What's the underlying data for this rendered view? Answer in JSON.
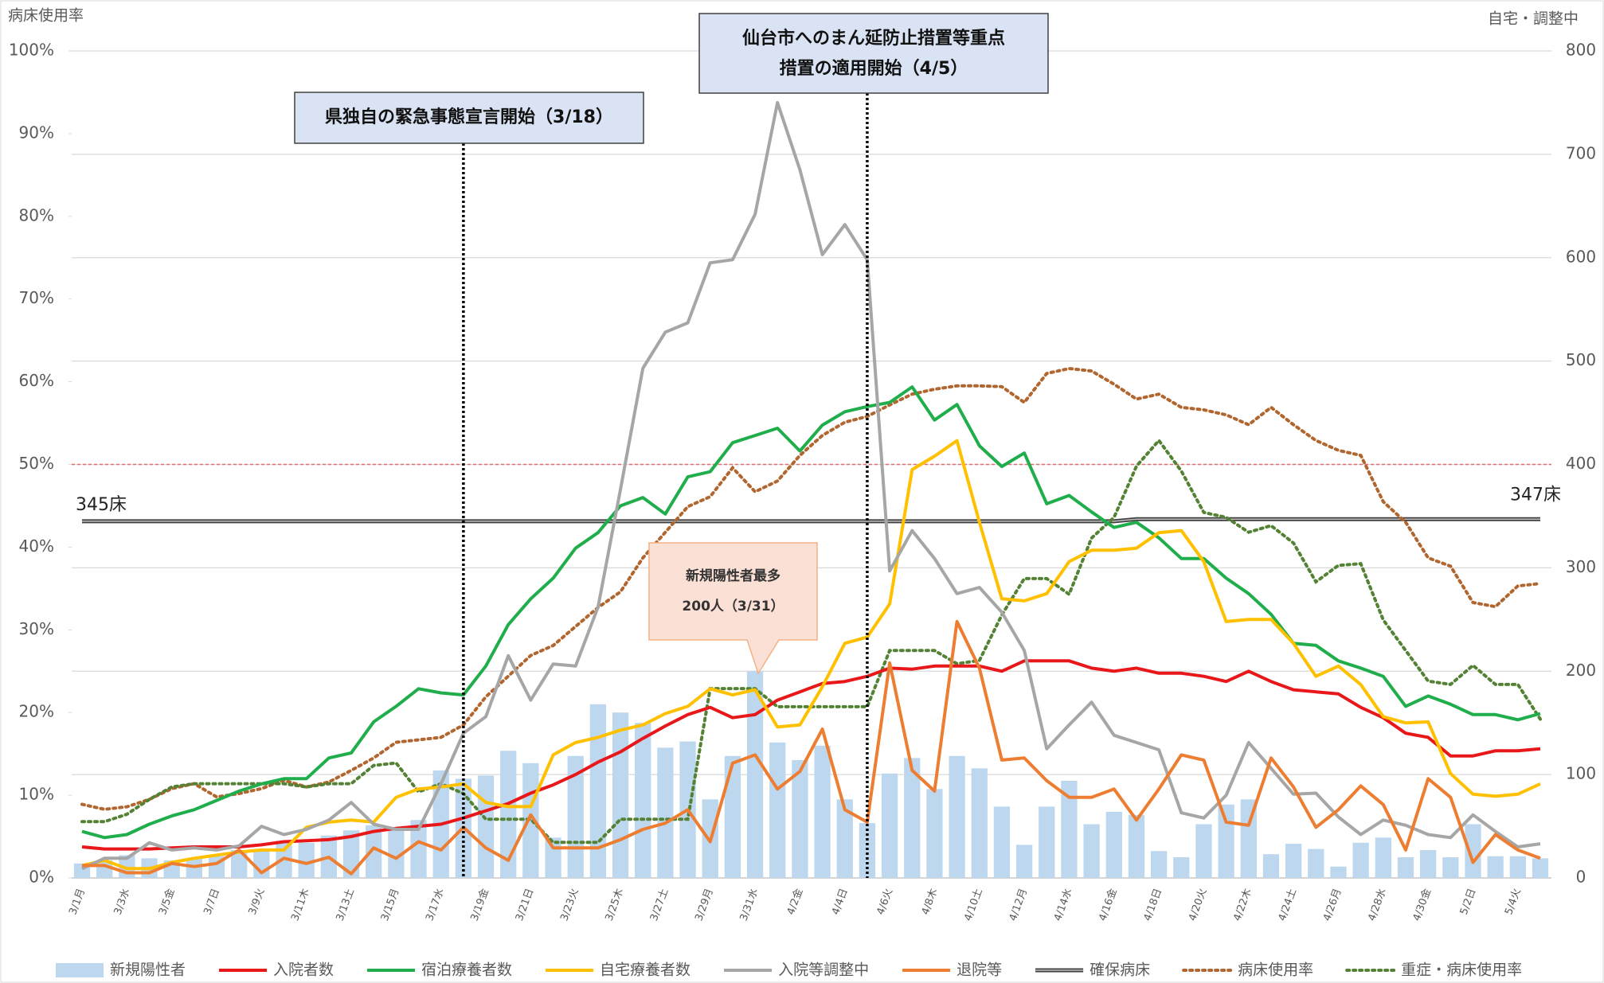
{
  "chart_data": {
    "type": "combo",
    "left_axis_label": "病床使用率",
    "right_axis_label": "自宅・調整中",
    "categories": [
      "3/1月",
      null,
      "3/3水",
      null,
      "3/5金",
      null,
      "3/7日",
      null,
      "3/9火",
      null,
      "3/11木",
      null,
      "3/13土",
      null,
      "3/15月",
      null,
      "3/17水",
      null,
      "3/19金",
      null,
      "3/21日",
      null,
      "3/23火",
      null,
      "3/25木",
      null,
      "3/27土",
      null,
      "3/29月",
      null,
      "3/31水",
      null,
      "4/2金",
      null,
      "4/4日",
      null,
      "4/6火",
      null,
      "4/8木",
      null,
      "4/10土",
      null,
      "4/12月",
      null,
      "4/14水",
      null,
      "4/16金",
      null,
      "4/18日",
      null,
      "4/20火",
      null,
      "4/22木",
      null,
      "4/24土",
      null,
      "4/26月",
      null,
      "4/28水",
      null,
      "4/30金",
      null,
      "5/2日",
      null,
      "5/4火",
      null
    ],
    "ylim": [
      0,
      100
    ],
    "yticks": [
      {
        "value": 0,
        "label": "0%"
      },
      {
        "value": 10,
        "label": "10%"
      },
      {
        "value": 20,
        "label": "20%"
      },
      {
        "value": 30,
        "label": "30%"
      },
      {
        "value": 40,
        "label": "40%"
      },
      {
        "value": 50,
        "label": "50%"
      },
      {
        "value": 60,
        "label": "60%"
      },
      {
        "value": 70,
        "label": "70%"
      },
      {
        "value": 80,
        "label": "80%"
      },
      {
        "value": 90,
        "label": "90%"
      },
      {
        "value": 100,
        "label": "100%"
      }
    ],
    "y2lim": [
      0,
      800
    ],
    "y2ticks": [
      0,
      100,
      200,
      300,
      400,
      500,
      600,
      700,
      800
    ],
    "grid": "y2",
    "reference_lines": [
      {
        "value": 50,
        "color": "#e46c6c"
      }
    ],
    "series": [
      {
        "name": "新規陽性者",
        "style": "bar",
        "axis": "y2",
        "color": "#bdd7ee",
        "values": [
          14,
          17,
          22,
          19,
          17,
          19,
          21,
          27,
          27,
          36,
          34,
          41,
          46,
          51,
          46,
          56,
          104,
          96,
          99,
          123,
          111,
          39,
          118,
          168,
          160,
          150,
          126,
          132,
          76,
          118,
          200,
          131,
          114,
          128,
          76,
          53,
          101,
          116,
          86,
          118,
          106,
          69,
          32,
          69,
          94,
          52,
          64,
          61,
          26,
          20,
          52,
          71,
          76,
          23,
          33,
          28,
          11,
          34,
          39,
          20,
          27,
          20,
          52,
          21,
          21,
          19
        ]
      },
      {
        "name": "入院者数",
        "style": "line",
        "axis": "y2",
        "color": "#e8171a",
        "values": [
          30,
          28,
          28,
          28,
          29,
          30,
          30,
          30,
          32,
          35,
          36,
          37,
          40,
          45,
          48,
          50,
          52,
          58,
          65,
          72,
          82,
          90,
          100,
          112,
          122,
          135,
          147,
          158,
          165,
          155,
          158,
          172,
          180,
          188,
          190,
          195,
          203,
          202,
          205,
          205,
          205,
          200,
          210,
          210,
          210,
          203,
          200,
          203,
          198,
          198,
          195,
          190,
          200,
          190,
          182,
          180,
          178,
          165,
          155,
          140,
          136,
          118,
          118,
          123,
          123,
          125
        ]
      },
      {
        "name": "宿泊療養者数",
        "style": "line",
        "axis": "y2",
        "color": "#1fae4b",
        "values": [
          45,
          39,
          42,
          52,
          60,
          66,
          75,
          84,
          91,
          96,
          96,
          116,
          121,
          151,
          166,
          183,
          179,
          177,
          205,
          245,
          270,
          290,
          319,
          334,
          360,
          368,
          352,
          388,
          393,
          421,
          428,
          435,
          413,
          438,
          451,
          456,
          460,
          475,
          443,
          458,
          418,
          398,
          411,
          362,
          370,
          354,
          339,
          344,
          329,
          309,
          309,
          290,
          275,
          255,
          227,
          225,
          210,
          203,
          195,
          166,
          176,
          168,
          158,
          158,
          153,
          159
        ]
      },
      {
        "name": "自宅療養者数",
        "style": "line",
        "axis": "y2",
        "color": "#ffc000",
        "values": [
          12,
          17,
          9,
          9,
          15,
          19,
          22,
          25,
          27,
          27,
          49,
          54,
          56,
          54,
          78,
          86,
          88,
          91,
          73,
          69,
          69,
          119,
          131,
          136,
          143,
          148,
          159,
          166,
          183,
          177,
          182,
          146,
          148,
          185,
          227,
          233,
          265,
          395,
          408,
          423,
          344,
          270,
          268,
          275,
          306,
          317,
          317,
          319,
          334,
          336,
          306,
          248,
          250,
          250,
          227,
          195,
          205,
          187,
          156,
          150,
          151,
          101,
          81,
          79,
          81,
          91
        ]
      },
      {
        "name": "入院等調整中",
        "style": "line",
        "axis": "y2",
        "color": "#a6a6a6",
        "values": [
          9,
          19,
          19,
          34,
          27,
          29,
          27,
          31,
          50,
          42,
          47,
          56,
          73,
          52,
          47,
          47,
          91,
          140,
          156,
          215,
          172,
          207,
          205,
          262,
          376,
          493,
          528,
          537,
          595,
          598,
          642,
          750,
          685,
          603,
          632,
          598,
          297,
          336,
          309,
          275,
          281,
          257,
          220,
          125,
          148,
          170,
          138,
          131,
          124,
          63,
          58,
          80,
          131,
          106,
          81,
          82,
          59,
          42,
          56,
          51,
          42,
          39,
          61,
          45,
          30,
          33
        ]
      },
      {
        "name": "退院等",
        "style": "line",
        "axis": "y2",
        "color": "#ed7d31",
        "values": [
          12,
          12,
          5,
          5,
          14,
          11,
          14,
          27,
          5,
          19,
          14,
          20,
          4,
          29,
          19,
          35,
          27,
          49,
          29,
          17,
          61,
          29,
          29,
          29,
          37,
          47,
          53,
          66,
          35,
          111,
          119,
          86,
          103,
          144,
          66,
          54,
          208,
          104,
          84,
          248,
          203,
          114,
          116,
          94,
          78,
          78,
          86,
          56,
          86,
          119,
          114,
          54,
          51,
          116,
          88,
          49,
          66,
          89,
          71,
          27,
          96,
          78,
          15,
          42,
          27,
          19
        ]
      },
      {
        "name": "確保病床",
        "style": "double",
        "axis": "y2",
        "color": "#404040",
        "values": [
          345,
          345,
          345,
          345,
          345,
          345,
          345,
          345,
          345,
          345,
          345,
          345,
          345,
          345,
          345,
          345,
          345,
          345,
          345,
          345,
          345,
          345,
          345,
          345,
          345,
          345,
          345,
          345,
          345,
          345,
          345,
          345,
          345,
          345,
          345,
          345,
          345,
          345,
          345,
          345,
          345,
          345,
          345,
          345,
          345,
          345,
          345,
          347,
          347,
          347,
          347,
          347,
          347,
          347,
          347,
          347,
          347,
          347,
          347,
          347,
          347,
          347,
          347,
          347,
          347,
          347
        ]
      },
      {
        "name": "病床使用率",
        "style": "dotted",
        "color": "#b0662e",
        "values": [
          8.9,
          8.3,
          8.6,
          9.5,
          10.8,
          11.4,
          9.8,
          10.2,
          10.8,
          11.8,
          11.0,
          11.6,
          13.0,
          14.5,
          16.4,
          16.7,
          17.0,
          18.5,
          21.9,
          24.4,
          26.9,
          28.1,
          30.4,
          32.7,
          34.6,
          38.7,
          41.8,
          44.9,
          46.1,
          49.6,
          46.7,
          48.0,
          51.1,
          53.5,
          55.1,
          55.8,
          57.2,
          58.5,
          59.1,
          59.5,
          59.5,
          59.4,
          57.5,
          61.0,
          61.6,
          61.3,
          59.7,
          57.9,
          58.5,
          56.9,
          56.6,
          56.0,
          54.8,
          56.9,
          54.8,
          52.9,
          51.7,
          51.1,
          45.5,
          43.0,
          38.7,
          37.7,
          33.3,
          32.8,
          35.3,
          35.6
        ]
      },
      {
        "name": "重症・病床使用率",
        "style": "dotted",
        "color": "#548235",
        "values": [
          6.8,
          6.8,
          7.7,
          9.5,
          11.0,
          11.4,
          11.4,
          11.4,
          11.4,
          11.4,
          11.0,
          11.4,
          11.4,
          13.6,
          13.9,
          10.4,
          11.4,
          10.2,
          7.1,
          7.1,
          7.1,
          4.3,
          4.3,
          4.3,
          7.1,
          7.1,
          7.1,
          7.1,
          22.9,
          22.9,
          22.9,
          20.7,
          20.7,
          20.7,
          20.7,
          20.7,
          27.5,
          27.5,
          27.5,
          25.9,
          26.3,
          31.8,
          36.2,
          36.2,
          34.3,
          41.1,
          43.6,
          49.8,
          52.9,
          49.2,
          44.2,
          43.6,
          41.8,
          42.6,
          40.5,
          35.8,
          37.8,
          38.0,
          31.2,
          27.5,
          23.8,
          23.4,
          25.7,
          23.4,
          23.4,
          19.2
        ]
      }
    ],
    "bed_labels": [
      "345床",
      "347床"
    ],
    "events": [
      {
        "x_index": 17,
        "label_lines": [
          "県独自の緊急事態宣言開始（3/18）"
        ]
      },
      {
        "x_index": 35,
        "label_lines": [
          "仙台市へのまん延防止措置等重点",
          "措置の適用開始（4/5）"
        ]
      }
    ],
    "callout": {
      "x_index": 30,
      "lines": [
        "新規陽性者最多",
        "200人（3/31）"
      ]
    }
  }
}
